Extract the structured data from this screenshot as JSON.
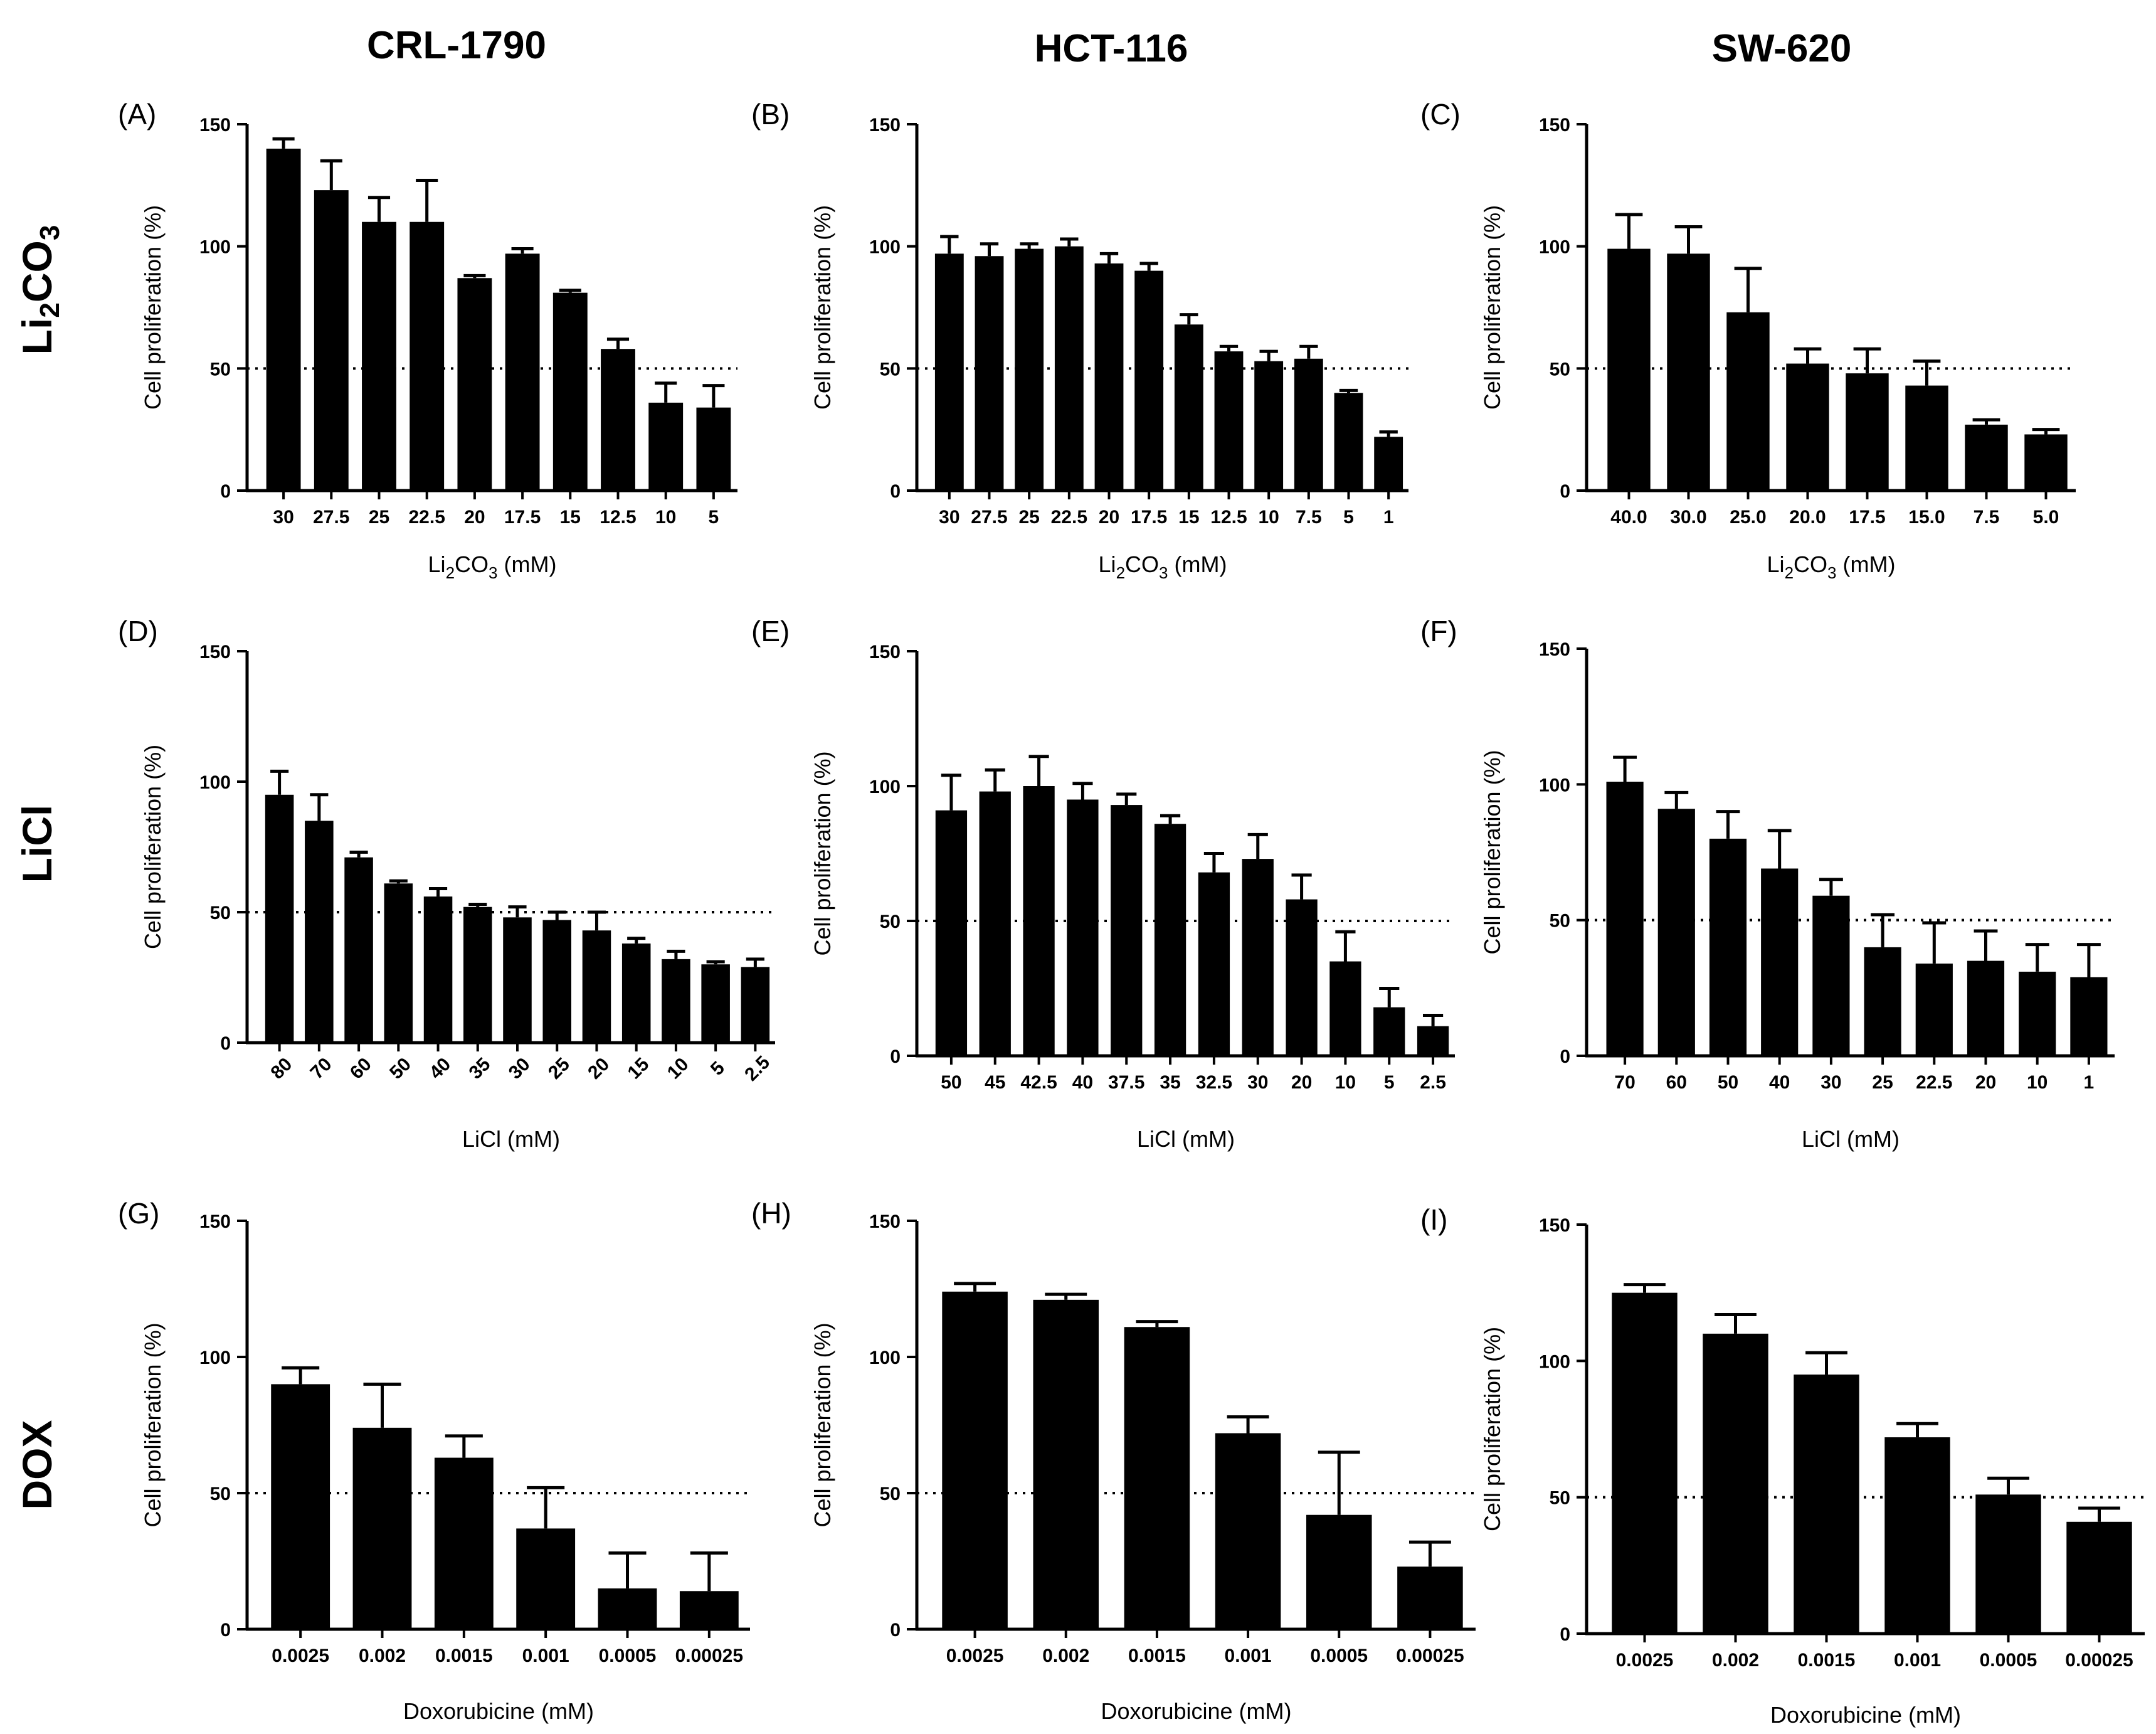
{
  "column_headers": [
    "CRL-1790",
    "HCT-116",
    "SW-620"
  ],
  "row_headers": [
    {
      "main": "Li",
      "sub1": "2",
      "mid": "CO",
      "sub2": "3"
    },
    {
      "main": "LiCl"
    },
    {
      "main": "DOX"
    }
  ],
  "chart_data": [
    {
      "id": "A",
      "label": "(A)",
      "type": "bar",
      "title": "",
      "categories": [
        "30",
        "27.5",
        "25",
        "22.5",
        "20",
        "17.5",
        "15",
        "12.5",
        "10",
        "5"
      ],
      "values": [
        140,
        123,
        110,
        110,
        87,
        97,
        81,
        58,
        36,
        34
      ],
      "errors": [
        4,
        12,
        10,
        17,
        1,
        2,
        1,
        4,
        8,
        9
      ],
      "xlabel": {
        "pre": "Li",
        "sub1": "2",
        "mid": "CO",
        "sub2": "3",
        "post": " (mM)"
      },
      "ylabel": "Cell proliferation (%)",
      "ylim": [
        0,
        150
      ],
      "yticks": [
        0,
        50,
        100,
        150
      ],
      "threshold": 50
    },
    {
      "id": "B",
      "label": "(B)",
      "type": "bar",
      "title": "",
      "categories": [
        "30",
        "27.5",
        "25",
        "22.5",
        "20",
        "17.5",
        "15",
        "12.5",
        "10",
        "7.5",
        "5",
        "1"
      ],
      "values": [
        97,
        96,
        99,
        100,
        93,
        90,
        68,
        57,
        53,
        54,
        40,
        22
      ],
      "errors": [
        7,
        5,
        2,
        3,
        4,
        3,
        4,
        2,
        4,
        5,
        1,
        2
      ],
      "xlabel": {
        "pre": "Li",
        "sub1": "2",
        "mid": "CO",
        "sub2": "3",
        "post": " (mM)"
      },
      "ylabel": "Cell proliferation (%)",
      "ylim": [
        0,
        150
      ],
      "yticks": [
        0,
        50,
        100,
        150
      ],
      "threshold": 50
    },
    {
      "id": "C",
      "label": "(C)",
      "type": "bar",
      "title": "",
      "categories": [
        "40.0",
        "30.0",
        "25.0",
        "20.0",
        "17.5",
        "15.0",
        "7.5",
        "5.0"
      ],
      "values": [
        99,
        97,
        73,
        52,
        48,
        43,
        27,
        23
      ],
      "errors": [
        14,
        11,
        18,
        6,
        10,
        10,
        2,
        2
      ],
      "xlabel": {
        "pre": "Li",
        "sub1": "2",
        "mid": "CO",
        "sub2": "3",
        "post": " (mM)"
      },
      "ylabel": "Cell proliferation (%)",
      "ylim": [
        0,
        150
      ],
      "yticks": [
        0,
        50,
        100,
        150
      ],
      "threshold": 50
    },
    {
      "id": "D",
      "label": "(D)",
      "type": "bar",
      "title": "",
      "rotate_ticks": true,
      "categories": [
        "80",
        "70",
        "60",
        "50",
        "40",
        "35",
        "30",
        "25",
        "20",
        "15",
        "10",
        "5",
        "2.5"
      ],
      "values": [
        95,
        85,
        71,
        61,
        56,
        52,
        48,
        47,
        43,
        38,
        32,
        30,
        29
      ],
      "errors": [
        9,
        10,
        2,
        1,
        3,
        1,
        4,
        3,
        7,
        2,
        3,
        1,
        3
      ],
      "xlabel": {
        "pre": "LiCl (mM)"
      },
      "ylabel": "Cell proliferation (%)",
      "ylim": [
        0,
        150
      ],
      "yticks": [
        0,
        50,
        100,
        150
      ],
      "threshold": 50
    },
    {
      "id": "E",
      "label": "(E)",
      "type": "bar",
      "title": "",
      "categories": [
        "50",
        "45",
        "42.5",
        "40",
        "37.5",
        "35",
        "32.5",
        "30",
        "20",
        "10",
        "5",
        "2.5"
      ],
      "values": [
        91,
        98,
        100,
        95,
        93,
        86,
        68,
        73,
        58,
        35,
        18,
        11
      ],
      "errors": [
        13,
        8,
        11,
        6,
        4,
        3,
        7,
        9,
        9,
        11,
        7,
        4
      ],
      "xlabel": {
        "pre": "LiCl (mM)"
      },
      "ylabel": "Cell proliferation (%)",
      "ylim": [
        0,
        150
      ],
      "yticks": [
        0,
        50,
        100,
        150
      ],
      "threshold": 50
    },
    {
      "id": "F",
      "label": "(F)",
      "type": "bar",
      "title": "",
      "categories": [
        "70",
        "60",
        "50",
        "40",
        "30",
        "25",
        "22.5",
        "20",
        "10",
        "1"
      ],
      "values": [
        101,
        91,
        80,
        69,
        59,
        40,
        34,
        35,
        31,
        29
      ],
      "errors": [
        9,
        6,
        10,
        14,
        6,
        12,
        15,
        11,
        10,
        12
      ],
      "xlabel": {
        "pre": "LiCl (mM)"
      },
      "ylabel": "Cell proliferation (%)",
      "ylim": [
        0,
        150
      ],
      "yticks": [
        0,
        50,
        100,
        150
      ],
      "threshold": 50
    },
    {
      "id": "G",
      "label": "(G)",
      "type": "bar",
      "title": "",
      "categories": [
        "0.0025",
        "0.002",
        "0.0015",
        "0.001",
        "0.0005",
        "0.00025"
      ],
      "values": [
        90,
        74,
        63,
        37,
        15,
        14
      ],
      "errors": [
        6,
        16,
        8,
        15,
        13,
        14
      ],
      "xlabel": {
        "pre": "Doxorubicine (mM)"
      },
      "ylabel": "Cell proliferation (%)",
      "ylim": [
        0,
        150
      ],
      "yticks": [
        0,
        50,
        100,
        150
      ],
      "threshold": 50
    },
    {
      "id": "H",
      "label": "(H)",
      "type": "bar",
      "title": "",
      "categories": [
        "0.0025",
        "0.002",
        "0.0015",
        "0.001",
        "0.0005",
        "0.00025"
      ],
      "values": [
        124,
        121,
        111,
        72,
        42,
        23
      ],
      "errors": [
        3,
        2,
        2,
        6,
        23,
        9
      ],
      "xlabel": {
        "pre": "Doxorubicine (mM)"
      },
      "ylabel": "Cell proliferation (%)",
      "ylim": [
        0,
        150
      ],
      "yticks": [
        0,
        50,
        100,
        150
      ],
      "threshold": 50
    },
    {
      "id": "I",
      "label": "(I)",
      "type": "bar",
      "title": "",
      "categories": [
        "0.0025",
        "0.002",
        "0.0015",
        "0.001",
        "0.0005",
        "0.00025"
      ],
      "values": [
        125,
        110,
        95,
        72,
        51,
        41
      ],
      "errors": [
        3,
        7,
        8,
        5,
        6,
        5
      ],
      "xlabel": {
        "pre": "Doxorubicine (mM)"
      },
      "ylabel": "Cell proliferation (%)",
      "ylim": [
        0,
        150
      ],
      "yticks": [
        0,
        50,
        100,
        150
      ],
      "threshold": 50
    }
  ]
}
